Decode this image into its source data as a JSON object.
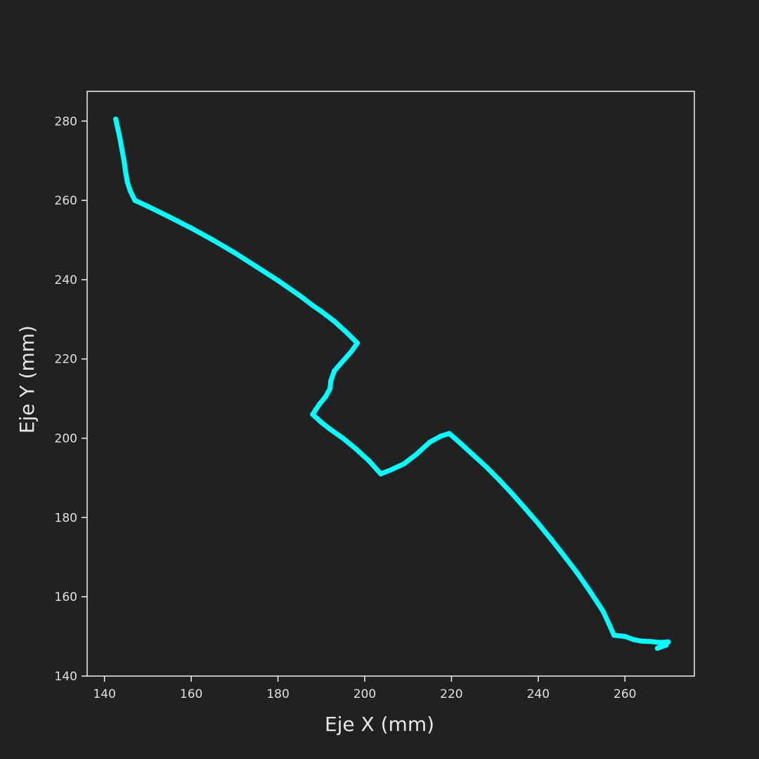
{
  "chart_data": {
    "type": "scatter",
    "title": "",
    "xlabel": "Eje X (mm)",
    "ylabel": "Eje Y (mm)",
    "xlim": [
      136,
      276
    ],
    "ylim": [
      140,
      287.5
    ],
    "xticks": [
      140,
      160,
      180,
      200,
      220,
      240,
      260
    ],
    "yticks": [
      140,
      160,
      180,
      200,
      220,
      240,
      260,
      280
    ],
    "grid": false,
    "legend": "none",
    "colors": {
      "background": "#212121",
      "axes": "#e6e6e6",
      "series": "#00ffff"
    },
    "series": [
      {
        "points": [
          [
            142.6,
            280.5
          ],
          [
            143.0,
            278.5
          ],
          [
            143.5,
            276.0
          ],
          [
            144.0,
            273.0
          ],
          [
            144.5,
            270.0
          ],
          [
            144.9,
            267.0
          ],
          [
            145.3,
            264.5
          ],
          [
            145.9,
            262.5
          ],
          [
            147.0,
            260.0
          ],
          [
            150.0,
            258.5
          ],
          [
            155.0,
            255.8
          ],
          [
            160.0,
            253.0
          ],
          [
            165.0,
            250.0
          ],
          [
            170.0,
            246.8
          ],
          [
            175.0,
            243.3
          ],
          [
            180.0,
            239.8
          ],
          [
            185.0,
            236.0
          ],
          [
            188.0,
            233.5
          ],
          [
            190.0,
            232.0
          ],
          [
            193.0,
            229.5
          ],
          [
            196.0,
            226.5
          ],
          [
            198.3,
            224.0
          ],
          [
            197.0,
            222.0
          ],
          [
            195.0,
            219.5
          ],
          [
            193.0,
            217.0
          ],
          [
            192.2,
            214.5
          ],
          [
            192.0,
            212.5
          ],
          [
            191.0,
            210.5
          ],
          [
            189.5,
            208.5
          ],
          [
            188.0,
            206.0
          ],
          [
            190.0,
            204.0
          ],
          [
            192.0,
            202.3
          ],
          [
            195.0,
            200.0
          ],
          [
            198.0,
            197.3
          ],
          [
            201.0,
            194.3
          ],
          [
            203.7,
            191.0
          ],
          [
            206.0,
            192.0
          ],
          [
            209.0,
            193.5
          ],
          [
            212.0,
            196.0
          ],
          [
            215.0,
            199.0
          ],
          [
            217.5,
            200.5
          ],
          [
            219.5,
            201.2
          ],
          [
            222.0,
            198.8
          ],
          [
            225.0,
            195.8
          ],
          [
            228.0,
            192.8
          ],
          [
            231.0,
            189.5
          ],
          [
            234.0,
            186.0
          ],
          [
            237.0,
            182.3
          ],
          [
            240.0,
            178.5
          ],
          [
            243.0,
            174.5
          ],
          [
            246.0,
            170.3
          ],
          [
            249.0,
            166.0
          ],
          [
            252.0,
            161.3
          ],
          [
            255.0,
            156.3
          ],
          [
            257.5,
            150.3
          ],
          [
            260.0,
            150.0
          ],
          [
            262.0,
            149.2
          ],
          [
            264.0,
            148.8
          ],
          [
            266.0,
            148.7
          ],
          [
            268.0,
            148.5
          ],
          [
            270.0,
            148.6
          ],
          [
            267.5,
            147.0
          ],
          [
            269.5,
            147.8
          ]
        ]
      }
    ]
  }
}
